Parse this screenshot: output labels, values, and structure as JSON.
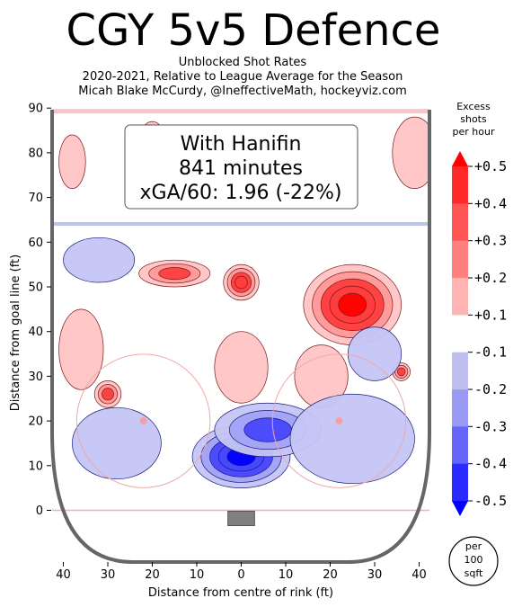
{
  "title": "CGY 5v5 Defence",
  "subtitle_lines": [
    "Unblocked Shot Rates",
    "2020-2021, Relative to League Average for the Season",
    "Micah Blake McCurdy, @IneffectiveMath, hockeyviz.com"
  ],
  "annotation": {
    "line1": "With Hanifin",
    "line2": "841 minutes",
    "line3": "xGA/60: 1.96 (-22%)"
  },
  "chart_data": {
    "type": "heatmap",
    "title": "CGY 5v5 Defence",
    "xlabel": "Distance from centre of rink (ft)",
    "ylabel": "Distance from goal line (ft)",
    "xlim": [
      -42,
      42
    ],
    "ylim": [
      -11,
      90
    ],
    "x_ticks": [
      -40,
      -30,
      -20,
      -10,
      0,
      10,
      20,
      30,
      40
    ],
    "x_tick_labels": [
      "40",
      "30",
      "20",
      "10",
      "0",
      "10",
      "20",
      "30",
      "40"
    ],
    "y_ticks": [
      0,
      10,
      20,
      30,
      40,
      50,
      60,
      70,
      80,
      90
    ],
    "y_tick_labels": [
      "0",
      "10",
      "20",
      "30",
      "40",
      "50",
      "60",
      "70",
      "80",
      "90"
    ],
    "colorbar": {
      "title_lines": [
        "Excess",
        "shots",
        "per hour"
      ],
      "range": [
        -0.5,
        0.5
      ],
      "tick_values": [
        0.5,
        0.4,
        0.3,
        0.2,
        0.1,
        -0.1,
        -0.2,
        -0.3,
        -0.4,
        -0.5
      ],
      "tick_labels": [
        "+0.5",
        "+0.4",
        "+0.3",
        "+0.2",
        "+0.1",
        "-0.1",
        "-0.2",
        "-0.3",
        "-0.4",
        "-0.5"
      ],
      "colors": [
        "#ff2a2a",
        "#ff5555",
        "#ff8080",
        "#ffb3b3",
        "#ffffff",
        "#c0c0f0",
        "#9a9af5",
        "#6565fa",
        "#2b2bff"
      ]
    },
    "unit_badge_lines": [
      "per",
      "100",
      "sqft"
    ],
    "regions": [
      {
        "x": 25,
        "y": 46,
        "rx": 11,
        "ry": 9,
        "value": 0.5
      },
      {
        "x": 0,
        "y": 51,
        "rx": 4,
        "ry": 4,
        "value": 0.4
      },
      {
        "x": -15,
        "y": 53,
        "rx": 8,
        "ry": 3,
        "value": 0.35
      },
      {
        "x": -30,
        "y": 26,
        "rx": 3,
        "ry": 3,
        "value": 0.3
      },
      {
        "x": 36,
        "y": 31,
        "rx": 2,
        "ry": 2,
        "value": 0.3
      },
      {
        "x": -36,
        "y": 36,
        "rx": 5,
        "ry": 9,
        "value": 0.15
      },
      {
        "x": 0,
        "y": 32,
        "rx": 6,
        "ry": 8,
        "value": 0.15
      },
      {
        "x": 18,
        "y": 30,
        "rx": 6,
        "ry": 7,
        "value": 0.15
      },
      {
        "x": -38,
        "y": 78,
        "rx": 3,
        "ry": 6,
        "value": 0.15
      },
      {
        "x": -20,
        "y": 78,
        "rx": 4,
        "ry": 9,
        "value": 0.15
      },
      {
        "x": 39,
        "y": 80,
        "rx": 5,
        "ry": 8,
        "value": 0.15
      },
      {
        "x": 0,
        "y": 12,
        "rx": 11,
        "ry": 7,
        "value": -0.5
      },
      {
        "x": 6,
        "y": 18,
        "rx": 12,
        "ry": 6,
        "value": -0.35
      },
      {
        "x": -28,
        "y": 15,
        "rx": 10,
        "ry": 8,
        "value": -0.15
      },
      {
        "x": 25,
        "y": 16,
        "rx": 14,
        "ry": 10,
        "value": -0.15
      },
      {
        "x": -32,
        "y": 56,
        "rx": 8,
        "ry": 5,
        "value": -0.15
      },
      {
        "x": 30,
        "y": 35,
        "rx": 6,
        "ry": 6,
        "value": -0.15
      }
    ]
  }
}
